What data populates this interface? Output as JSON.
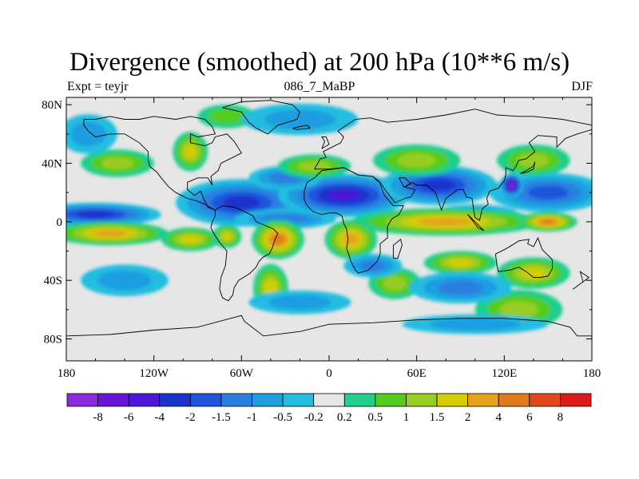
{
  "chart_data": {
    "type": "heatmap",
    "title": "Divergence (smoothed) at 200 hPa (10**6 m/s)",
    "subtitle_left": "Expt = teyjr",
    "subtitle_center": "086_7_MaBP",
    "subtitle_right": "DJF",
    "x_range": [
      -180,
      180
    ],
    "y_range": [
      -90,
      90
    ],
    "x_ticks": [
      {
        "value": -180,
        "label": "180"
      },
      {
        "value": -120,
        "label": "120W"
      },
      {
        "value": -60,
        "label": "60W"
      },
      {
        "value": 0,
        "label": "0"
      },
      {
        "value": 60,
        "label": "60E"
      },
      {
        "value": 120,
        "label": "120E"
      },
      {
        "value": 180,
        "label": "180"
      }
    ],
    "y_ticks": [
      {
        "value": 80,
        "label": "80N"
      },
      {
        "value": 40,
        "label": "40N"
      },
      {
        "value": 0,
        "label": "0"
      },
      {
        "value": -40,
        "label": "40S"
      },
      {
        "value": -80,
        "label": "80S"
      }
    ],
    "colorbar": {
      "levels": [
        "-8",
        "-6",
        "-4",
        "-2",
        "-1.5",
        "-1",
        "-0.5",
        "-0.2",
        "0.2",
        "0.5",
        "1",
        "1.5",
        "2",
        "4",
        "6",
        "8"
      ],
      "colors": [
        "#8a2be2",
        "#6a16d8",
        "#4a16d8",
        "#1a33cc",
        "#1f55dd",
        "#2a7fe0",
        "#1f9ee0",
        "#22bde0",
        "#e6e6e6",
        "#1fcf8a",
        "#52cc1a",
        "#99cc22",
        "#d4cc00",
        "#e6a31a",
        "#e07a1a",
        "#e04a1a",
        "#e01a1a"
      ]
    },
    "fields": [
      {
        "lon": -160,
        "lat": 5,
        "a": 45,
        "b": 6,
        "value": -2
      },
      {
        "lon": -60,
        "lat": 13,
        "a": 45,
        "b": 12,
        "value": -2.5
      },
      {
        "lon": 10,
        "lat": 18,
        "a": 45,
        "b": 11,
        "value": -4
      },
      {
        "lon": 75,
        "lat": 25,
        "a": 40,
        "b": 10,
        "value": -3
      },
      {
        "lon": 150,
        "lat": 20,
        "a": 40,
        "b": 10,
        "value": -1.5
      },
      {
        "lon": 125,
        "lat": 25,
        "a": 8,
        "b": 6,
        "value": -8
      },
      {
        "lon": -30,
        "lat": 30,
        "a": 25,
        "b": 6,
        "value": -1
      },
      {
        "lon": -30,
        "lat": 2,
        "a": 35,
        "b": 5,
        "value": -1
      },
      {
        "lon": 100,
        "lat": 5,
        "a": 30,
        "b": 5,
        "value": -1
      },
      {
        "lon": -150,
        "lat": -8,
        "a": 40,
        "b": 6,
        "value": 2
      },
      {
        "lon": 80,
        "lat": 0,
        "a": 65,
        "b": 7,
        "value": 3
      },
      {
        "lon": 150,
        "lat": 0,
        "a": 20,
        "b": 5,
        "value": 4
      },
      {
        "lon": -145,
        "lat": 40,
        "a": 25,
        "b": 7,
        "value": 1
      },
      {
        "lon": -95,
        "lat": 48,
        "a": 12,
        "b": 10,
        "value": 1.5
      },
      {
        "lon": -10,
        "lat": 38,
        "a": 25,
        "b": 6,
        "value": 1
      },
      {
        "lon": 60,
        "lat": 42,
        "a": 30,
        "b": 8,
        "value": 1
      },
      {
        "lon": 140,
        "lat": 42,
        "a": 25,
        "b": 8,
        "value": 1
      },
      {
        "lon": -70,
        "lat": 72,
        "a": 20,
        "b": 6,
        "value": 0.8
      },
      {
        "lon": -70,
        "lat": -10,
        "a": 10,
        "b": 6,
        "value": 1.5
      },
      {
        "lon": -35,
        "lat": -12,
        "a": 18,
        "b": 10,
        "value": 5
      },
      {
        "lon": -40,
        "lat": -45,
        "a": 12,
        "b": 12,
        "value": 1.5
      },
      {
        "lon": 15,
        "lat": -12,
        "a": 18,
        "b": 10,
        "value": 2
      },
      {
        "lon": 45,
        "lat": -42,
        "a": 18,
        "b": 8,
        "value": 1
      },
      {
        "lon": 90,
        "lat": -28,
        "a": 25,
        "b": 6,
        "value": 1.5
      },
      {
        "lon": 140,
        "lat": -35,
        "a": 25,
        "b": 8,
        "value": 1.5
      },
      {
        "lon": 130,
        "lat": -60,
        "a": 30,
        "b": 10,
        "value": 1
      },
      {
        "lon": -95,
        "lat": -12,
        "a": 20,
        "b": 6,
        "value": 1.5
      },
      {
        "lon": 30,
        "lat": -30,
        "a": 20,
        "b": 6,
        "value": -1
      },
      {
        "lon": -140,
        "lat": -40,
        "a": 30,
        "b": 8,
        "value": -0.6
      },
      {
        "lon": 90,
        "lat": -45,
        "a": 35,
        "b": 8,
        "value": -1
      },
      {
        "lon": -20,
        "lat": -55,
        "a": 35,
        "b": 6,
        "value": -0.6
      },
      {
        "lon": 100,
        "lat": -70,
        "a": 50,
        "b": 5,
        "value": -0.5
      },
      {
        "lon": -20,
        "lat": 70,
        "a": 40,
        "b": 8,
        "value": -0.5
      },
      {
        "lon": -165,
        "lat": 60,
        "a": 20,
        "b": 10,
        "value": -0.6
      }
    ],
    "coastlines": [
      [
        [
          -168,
          70
        ],
        [
          -160,
          70
        ],
        [
          -150,
          72
        ],
        [
          -140,
          70
        ],
        [
          -130,
          70
        ],
        [
          -120,
          72
        ],
        [
          -105,
          70
        ],
        [
          -95,
          72
        ],
        [
          -85,
          70
        ],
        [
          -80,
          65
        ],
        [
          -78,
          60
        ],
        [
          -90,
          58
        ],
        [
          -95,
          60
        ],
        [
          -95,
          54
        ],
        [
          -85,
          52
        ],
        [
          -80,
          54
        ],
        [
          -78,
          58
        ],
        [
          -70,
          60
        ],
        [
          -65,
          55
        ],
        [
          -60,
          47
        ],
        [
          -66,
          44
        ],
        [
          -70,
          42
        ],
        [
          -74,
          40
        ],
        [
          -76,
          35
        ],
        [
          -81,
          31
        ],
        [
          -80,
          25
        ],
        [
          -83,
          30
        ],
        [
          -90,
          30
        ],
        [
          -97,
          27
        ],
        [
          -97,
          22
        ],
        [
          -92,
          18
        ],
        [
          -88,
          21
        ],
        [
          -86,
          16
        ],
        [
          -83,
          10
        ],
        [
          -78,
          8
        ],
        [
          -80,
          9
        ],
        [
          -85,
          12
        ],
        [
          -90,
          14
        ],
        [
          -97,
          16
        ],
        [
          -105,
          20
        ],
        [
          -110,
          24
        ],
        [
          -115,
          30
        ],
        [
          -118,
          34
        ],
        [
          -123,
          38
        ],
        [
          -124,
          43
        ],
        [
          -124,
          48
        ],
        [
          -130,
          54
        ],
        [
          -140,
          60
        ],
        [
          -150,
          60
        ],
        [
          -160,
          58
        ],
        [
          -165,
          62
        ],
        [
          -168,
          66
        ],
        [
          -168,
          70
        ]
      ],
      [
        [
          -78,
          8
        ],
        [
          -73,
          11
        ],
        [
          -65,
          10
        ],
        [
          -60,
          8
        ],
        [
          -52,
          4
        ],
        [
          -50,
          0
        ],
        [
          -45,
          -2
        ],
        [
          -38,
          -5
        ],
        [
          -35,
          -8
        ],
        [
          -37,
          -12
        ],
        [
          -39,
          -18
        ],
        [
          -41,
          -22
        ],
        [
          -45,
          -24
        ],
        [
          -48,
          -27
        ],
        [
          -50,
          -31
        ],
        [
          -54,
          -35
        ],
        [
          -57,
          -37
        ],
        [
          -62,
          -40
        ],
        [
          -65,
          -45
        ],
        [
          -66,
          -50
        ],
        [
          -69,
          -54
        ],
        [
          -73,
          -52
        ],
        [
          -75,
          -46
        ],
        [
          -74,
          -38
        ],
        [
          -71,
          -30
        ],
        [
          -70,
          -20
        ],
        [
          -75,
          -14
        ],
        [
          -79,
          -8
        ],
        [
          -81,
          -4
        ],
        [
          -80,
          0
        ],
        [
          -78,
          4
        ],
        [
          -78,
          8
        ]
      ],
      [
        [
          -73,
          78
        ],
        [
          -60,
          82
        ],
        [
          -40,
          83
        ],
        [
          -25,
          80
        ],
        [
          -20,
          75
        ],
        [
          -22,
          70
        ],
        [
          -35,
          66
        ],
        [
          -42,
          60
        ],
        [
          -50,
          64
        ],
        [
          -55,
          68
        ],
        [
          -60,
          75
        ],
        [
          -73,
          78
        ]
      ],
      [
        [
          -10,
          36
        ],
        [
          -6,
          43
        ],
        [
          -2,
          44
        ],
        [
          -4,
          48
        ],
        [
          2,
          51
        ],
        [
          8,
          54
        ],
        [
          10,
          58
        ],
        [
          6,
          62
        ],
        [
          12,
          66
        ],
        [
          18,
          70
        ],
        [
          28,
          71
        ],
        [
          40,
          68
        ],
        [
          60,
          70
        ],
        [
          80,
          73
        ],
        [
          100,
          77
        ],
        [
          115,
          73
        ],
        [
          130,
          72
        ],
        [
          140,
          72
        ],
        [
          160,
          70
        ],
        [
          170,
          68
        ],
        [
          180,
          66
        ]
      ],
      [
        [
          180,
          63
        ],
        [
          170,
          60
        ],
        [
          162,
          57
        ],
        [
          156,
          51
        ],
        [
          156,
          58
        ],
        [
          143,
          59
        ],
        [
          137,
          54
        ],
        [
          141,
          48
        ],
        [
          135,
          43
        ],
        [
          130,
          42
        ],
        [
          128,
          38
        ],
        [
          126,
          35
        ],
        [
          121,
          37
        ],
        [
          121,
          32
        ],
        [
          120,
          28
        ],
        [
          116,
          23
        ],
        [
          110,
          21
        ],
        [
          108,
          16
        ],
        [
          109,
          12
        ],
        [
          105,
          9
        ],
        [
          103,
          1
        ],
        [
          100,
          3
        ],
        [
          99,
          8
        ],
        [
          98,
          16
        ],
        [
          94,
          17
        ],
        [
          92,
          22
        ],
        [
          88,
          22
        ],
        [
          80,
          16
        ],
        [
          77,
          8
        ],
        [
          73,
          20
        ],
        [
          67,
          25
        ],
        [
          60,
          25
        ],
        [
          57,
          27
        ],
        [
          52,
          24
        ],
        [
          56,
          26
        ],
        [
          52,
          30
        ],
        [
          48,
          30
        ],
        [
          50,
          26
        ],
        [
          51,
          24
        ],
        [
          55,
          23
        ],
        [
          59,
          22
        ],
        [
          56,
          17
        ],
        [
          52,
          16
        ],
        [
          45,
          13
        ],
        [
          43,
          16
        ],
        [
          39,
          21
        ],
        [
          35,
          27
        ],
        [
          33,
          28
        ],
        [
          30,
          31
        ],
        [
          20,
          32
        ],
        [
          10,
          37
        ],
        [
          0,
          36
        ],
        [
          -6,
          36
        ],
        [
          -10,
          36
        ]
      ],
      [
        [
          -17,
          21
        ],
        [
          -17,
          15
        ],
        [
          -15,
          11
        ],
        [
          -11,
          7
        ],
        [
          -5,
          5
        ],
        [
          0,
          6
        ],
        [
          5,
          6
        ],
        [
          9,
          4
        ],
        [
          10,
          -1
        ],
        [
          12,
          -5
        ],
        [
          13,
          -12
        ],
        [
          12,
          -18
        ],
        [
          15,
          -27
        ],
        [
          18,
          -33
        ],
        [
          20,
          -35
        ],
        [
          27,
          -33
        ],
        [
          33,
          -27
        ],
        [
          35,
          -22
        ],
        [
          35,
          -15
        ],
        [
          40,
          -11
        ],
        [
          40,
          -3
        ],
        [
          43,
          2
        ],
        [
          48,
          5
        ],
        [
          51,
          11
        ],
        [
          44,
          11
        ],
        [
          38,
          18
        ],
        [
          34,
          28
        ],
        [
          30,
          31
        ],
        [
          20,
          32
        ],
        [
          10,
          37
        ],
        [
          -5,
          35
        ],
        [
          -10,
          30
        ],
        [
          -15,
          27
        ],
        [
          -17,
          21
        ]
      ],
      [
        [
          114,
          -22
        ],
        [
          122,
          -18
        ],
        [
          130,
          -13
        ],
        [
          137,
          -12
        ],
        [
          136,
          -15
        ],
        [
          140,
          -17
        ],
        [
          143,
          -11
        ],
        [
          146,
          -19
        ],
        [
          150,
          -23
        ],
        [
          153,
          -26
        ],
        [
          153,
          -32
        ],
        [
          150,
          -37
        ],
        [
          145,
          -38
        ],
        [
          140,
          -38
        ],
        [
          135,
          -34
        ],
        [
          130,
          -31
        ],
        [
          124,
          -33
        ],
        [
          116,
          -34
        ],
        [
          115,
          -30
        ],
        [
          114,
          -22
        ]
      ],
      [
        [
          -180,
          -78
        ],
        [
          -150,
          -77
        ],
        [
          -120,
          -74
        ],
        [
          -90,
          -72
        ],
        [
          -60,
          -64
        ],
        [
          -58,
          -68
        ],
        [
          -45,
          -78
        ],
        [
          -20,
          -75
        ],
        [
          0,
          -70
        ],
        [
          30,
          -69
        ],
        [
          60,
          -67
        ],
        [
          90,
          -66
        ],
        [
          120,
          -66
        ],
        [
          150,
          -68
        ],
        [
          165,
          -72
        ],
        [
          170,
          -78
        ],
        [
          180,
          -78
        ]
      ],
      [
        [
          -5,
          50
        ],
        [
          -3,
          55
        ],
        [
          -5,
          58
        ],
        [
          -2,
          58
        ],
        [
          0,
          53
        ],
        [
          -5,
          50
        ]
      ],
      [
        [
          -25,
          64
        ],
        [
          -15,
          66
        ],
        [
          -13,
          64
        ],
        [
          -22,
          63
        ],
        [
          -25,
          64
        ]
      ],
      [
        [
          44,
          -25
        ],
        [
          47,
          -25
        ],
        [
          50,
          -16
        ],
        [
          49,
          -12
        ],
        [
          44,
          -16
        ],
        [
          44,
          -25
        ]
      ],
      [
        [
          95,
          5
        ],
        [
          106,
          -6
        ],
        [
          102,
          -4
        ],
        [
          95,
          5
        ]
      ],
      [
        [
          131,
          33
        ],
        [
          136,
          34
        ],
        [
          140,
          36
        ],
        [
          141,
          41
        ],
        [
          140,
          38
        ],
        [
          135,
          35
        ],
        [
          131,
          33
        ]
      ],
      [
        [
          167,
          -46
        ],
        [
          174,
          -41
        ],
        [
          178,
          -38
        ],
        [
          172,
          -34
        ],
        [
          174,
          -41
        ],
        [
          167,
          -46
        ]
      ]
    ]
  }
}
